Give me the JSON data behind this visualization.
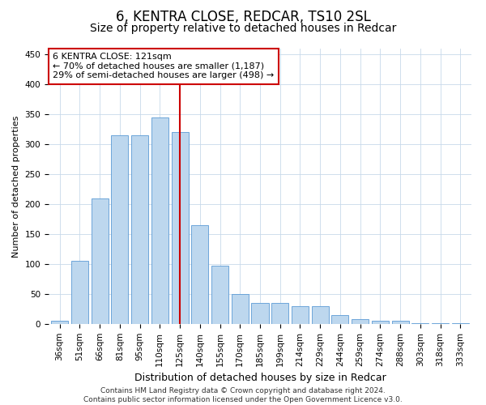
{
  "title1": "6, KENTRA CLOSE, REDCAR, TS10 2SL",
  "title2": "Size of property relative to detached houses in Redcar",
  "xlabel": "Distribution of detached houses by size in Redcar",
  "ylabel": "Number of detached properties",
  "categories": [
    "36sqm",
    "51sqm",
    "66sqm",
    "81sqm",
    "95sqm",
    "110sqm",
    "125sqm",
    "140sqm",
    "155sqm",
    "170sqm",
    "185sqm",
    "199sqm",
    "214sqm",
    "229sqm",
    "244sqm",
    "259sqm",
    "274sqm",
    "288sqm",
    "303sqm",
    "318sqm",
    "333sqm"
  ],
  "values": [
    5,
    105,
    210,
    315,
    315,
    345,
    320,
    165,
    98,
    50,
    35,
    35,
    30,
    30,
    15,
    8,
    5,
    5,
    2,
    1,
    1
  ],
  "bar_color": "#bdd7ee",
  "bar_edge_color": "#5b9bd5",
  "grid_color": "#c8d9ea",
  "annotation_text_line1": "6 KENTRA CLOSE: 121sqm",
  "annotation_text_line2": "← 70% of detached houses are smaller (1,187)",
  "annotation_text_line3": "29% of semi-detached houses are larger (498) →",
  "annotation_box_color": "#ffffff",
  "annotation_box_edge": "#cc0000",
  "vline_x_index": 6.0,
  "vline_color": "#cc0000",
  "ylim": [
    0,
    460
  ],
  "yticks": [
    0,
    50,
    100,
    150,
    200,
    250,
    300,
    350,
    400,
    450
  ],
  "footer1": "Contains HM Land Registry data © Crown copyright and database right 2024.",
  "footer2": "Contains public sector information licensed under the Open Government Licence v3.0.",
  "bg_color": "#ffffff",
  "title1_fontsize": 12,
  "title2_fontsize": 10,
  "xlabel_fontsize": 9,
  "ylabel_fontsize": 8,
  "tick_fontsize": 7.5,
  "annotation_fontsize": 8,
  "footer_fontsize": 6.5
}
